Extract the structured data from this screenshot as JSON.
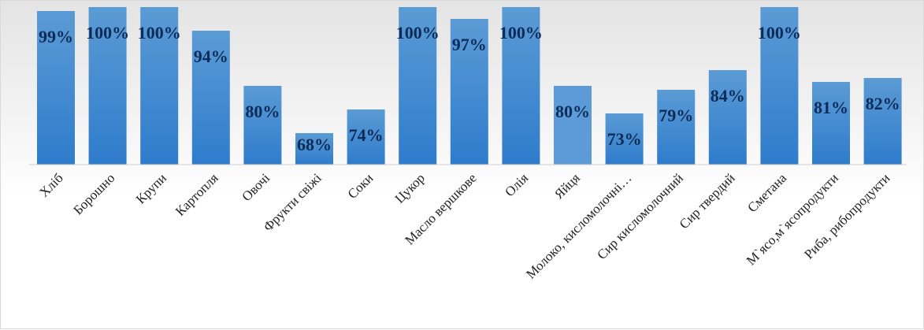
{
  "colors": {
    "bar_top": "#5b9bd5",
    "bar_bottom": "#2f7ccc",
    "bar_highlight": "#5c9ad8",
    "label": "#0d2b57",
    "axis": "#d0d0d0"
  },
  "chart_data": {
    "type": "bar",
    "categories": [
      "Хліб",
      "Борошно",
      "Крупи",
      "Картопля",
      "Овочі",
      "Фрукти свіжі",
      "Соки",
      "Цукор",
      "Масло вершкове",
      "Олія",
      "Яйця",
      "Молоко, кисломолочні…",
      "Сир кисломолочний",
      "Сир твердий",
      "Сметана",
      "М`ясо,м`ясопродукти",
      "Риба, рибопродукти"
    ],
    "values": [
      99,
      100,
      100,
      94,
      80,
      68,
      74,
      100,
      97,
      100,
      80,
      73,
      79,
      84,
      100,
      81,
      82
    ],
    "value_labels": [
      "99%",
      "100%",
      "100%",
      "94%",
      "80%",
      "68%",
      "74%",
      "100%",
      "97%",
      "100%",
      "80%",
      "73%",
      "79%",
      "84%",
      "100%",
      "81%",
      "82%"
    ],
    "highlighted_index": 10,
    "ylim": [
      60,
      100
    ],
    "grid": false,
    "legend": "none"
  }
}
